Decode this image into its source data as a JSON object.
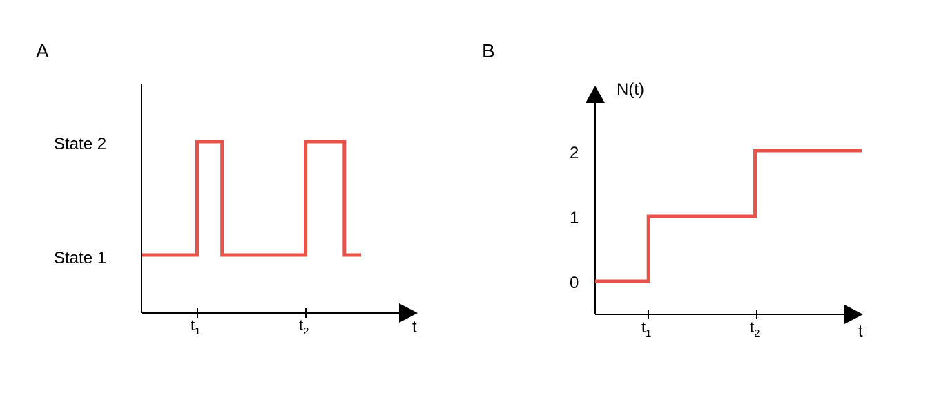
{
  "panel_a": {
    "letter": "A",
    "state_labels": [
      "State 2",
      "State 1"
    ],
    "x_axis_label": "t",
    "tick_labels": [
      {
        "main": "t",
        "sub": "1"
      },
      {
        "main": "t",
        "sub": "2"
      }
    ],
    "trace_color": "#e8524a",
    "trace": [
      {
        "x": 0,
        "state": 1
      },
      {
        "x": 1,
        "state": 1
      },
      {
        "x": 1,
        "state": 2
      },
      {
        "x": 1.45,
        "state": 2
      },
      {
        "x": 1.45,
        "state": 1
      },
      {
        "x": 2.95,
        "state": 1
      },
      {
        "x": 2.95,
        "state": 2
      },
      {
        "x": 3.65,
        "state": 2
      },
      {
        "x": 3.65,
        "state": 1
      },
      {
        "x": 3.95,
        "state": 1
      }
    ]
  },
  "panel_b": {
    "letter": "B",
    "y_axis_label": "N(t)",
    "x_axis_label": "t",
    "y_tick_labels": [
      "0",
      "1",
      "2"
    ],
    "tick_labels": [
      {
        "main": "t",
        "sub": "1"
      },
      {
        "main": "t",
        "sub": "2"
      }
    ],
    "trace_color": "#e8524a",
    "steps": [
      {
        "x": 0,
        "n": 0
      },
      {
        "x": 1,
        "n": 0
      },
      {
        "x": 1,
        "n": 1
      },
      {
        "x": 3,
        "n": 1
      },
      {
        "x": 3,
        "n": 2
      },
      {
        "x": 5,
        "n": 2
      }
    ]
  }
}
